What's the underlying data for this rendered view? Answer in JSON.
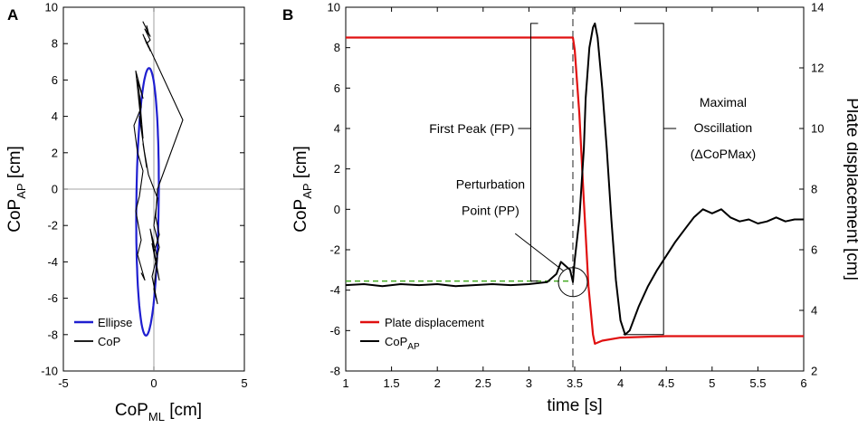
{
  "chart_data": [
    {
      "panel": "A",
      "type": "line",
      "xlabel": "CoP",
      "xlabel_sub": "ML",
      "xlabel_unit": "[cm]",
      "ylabel": "CoP",
      "ylabel_sub": "AP",
      "ylabel_unit": "[cm]",
      "xlim": [
        -5,
        5
      ],
      "ylim": [
        -10,
        10
      ],
      "xticks": [
        -5,
        0,
        5
      ],
      "yticks": [
        -10,
        -8,
        -6,
        -4,
        -2,
        0,
        2,
        4,
        6,
        8,
        10
      ],
      "grid": false,
      "zero_lines": true,
      "legend_position": "bottom-left",
      "series": [
        {
          "name": "Ellipse",
          "color": "#1f1fd0",
          "kind": "ellipse",
          "center": [
            -0.35,
            -0.7
          ],
          "semi_major": 7.35,
          "semi_minor": 0.62,
          "tilt_deg": 5.5
        },
        {
          "name": "CoP",
          "color": "#000000",
          "kind": "trace",
          "x": [
            -0.4,
            -0.3,
            -0.6,
            -0.2,
            -0.5,
            -0.2,
            -0.4,
            -0.6,
            -0.3,
            -0.5,
            -0.2,
            -0.4,
            1.6,
            0.2,
            0.1,
            0.3,
            0.0,
            0.2,
            -0.1,
            0.1,
            0.3,
            -0.2,
            0.2,
            0.0,
            0.2,
            -0.1,
            0.3,
            0.0,
            0.2,
            -0.3,
            -0.6,
            -0.4,
            -0.8,
            -0.6,
            -0.8,
            -0.7,
            -1.0,
            -0.6,
            -0.9,
            -0.7,
            -1.1,
            -0.9,
            -0.6,
            -0.8,
            -1.0,
            -0.7,
            -0.9,
            -0.5,
            -0.7
          ],
          "y": [
            9.0,
            8.6,
            9.2,
            8.4,
            8.8,
            8.2,
            8.0,
            8.5,
            7.8,
            8.3,
            7.6,
            8.1,
            3.8,
            0.0,
            -1.5,
            -2.5,
            -3.5,
            -4.5,
            -3.0,
            -4.0,
            -5.0,
            -2.2,
            -3.8,
            -5.5,
            -6.3,
            -4.8,
            -3.2,
            -2.0,
            -0.5,
            0.8,
            2.5,
            1.2,
            4.0,
            2.8,
            5.2,
            3.6,
            6.5,
            5.0,
            6.0,
            4.5,
            3.5,
            2.0,
            1.0,
            -0.4,
            -1.2,
            -2.8,
            -3.6,
            -5.0,
            -4.6
          ]
        }
      ]
    },
    {
      "panel": "B",
      "type": "line",
      "xlabel": "time [s]",
      "ylabel": "CoP",
      "ylabel_sub": "AP",
      "ylabel_unit": "[cm]",
      "y2label": "Plate displacement [cm]",
      "xlim": [
        1,
        6
      ],
      "ylim": [
        -8,
        10
      ],
      "y2lim": [
        2,
        14
      ],
      "xticks": [
        1,
        1.5,
        2,
        2.5,
        3,
        3.5,
        4,
        4.5,
        5,
        5.5,
        6
      ],
      "yticks": [
        -8,
        -6,
        -4,
        -2,
        0,
        2,
        4,
        6,
        8,
        10
      ],
      "y2ticks": [
        2,
        4,
        6,
        8,
        10,
        12,
        14
      ],
      "grid": false,
      "legend_position": "bottom-left",
      "baseline_dashed": {
        "y": -3.55,
        "x_end": 3.45,
        "color": "#44aa22"
      },
      "perturbation_time": 3.48,
      "series": [
        {
          "name": "Plate displacement",
          "color": "#e01010",
          "axis": "right",
          "x": [
            1.0,
            3.48,
            3.5,
            3.55,
            3.6,
            3.65,
            3.7,
            3.72,
            3.8,
            4.0,
            4.5,
            6.0
          ],
          "y": [
            13.0,
            13.0,
            12.6,
            10.5,
            7.6,
            4.8,
            3.2,
            2.9,
            3.0,
            3.1,
            3.15,
            3.15
          ]
        },
        {
          "name": "CoP",
          "name_sub": "AP",
          "color": "#000000",
          "axis": "left",
          "x": [
            1.0,
            1.2,
            1.4,
            1.6,
            1.8,
            2.0,
            2.2,
            2.4,
            2.6,
            2.8,
            3.0,
            3.2,
            3.3,
            3.35,
            3.4,
            3.45,
            3.48,
            3.5,
            3.55,
            3.6,
            3.62,
            3.66,
            3.7,
            3.72,
            3.75,
            3.8,
            3.85,
            3.9,
            3.95,
            4.0,
            4.05,
            4.1,
            4.2,
            4.3,
            4.4,
            4.5,
            4.6,
            4.7,
            4.8,
            4.9,
            5.0,
            5.1,
            5.2,
            5.3,
            5.4,
            5.5,
            5.6,
            5.7,
            5.8,
            5.9,
            6.0
          ],
          "y": [
            -3.75,
            -3.7,
            -3.8,
            -3.7,
            -3.75,
            -3.7,
            -3.8,
            -3.75,
            -3.7,
            -3.75,
            -3.7,
            -3.6,
            -3.2,
            -2.6,
            -2.8,
            -3.0,
            -3.6,
            -2.5,
            -0.5,
            3.0,
            5.5,
            8.0,
            9.0,
            9.2,
            8.5,
            6.0,
            3.0,
            -0.5,
            -3.5,
            -5.5,
            -6.2,
            -6.0,
            -4.8,
            -3.8,
            -3.0,
            -2.3,
            -1.6,
            -1.0,
            -0.4,
            0.0,
            -0.2,
            0.0,
            -0.4,
            -0.6,
            -0.5,
            -0.7,
            -0.6,
            -0.4,
            -0.6,
            -0.5,
            -0.5
          ]
        }
      ],
      "annotations": [
        {
          "text": "First Peak (FP)",
          "points_to_y": 4.0
        },
        {
          "lines": [
            "Maximal",
            "Oscillation",
            "(ΔCoPMax)"
          ]
        },
        {
          "lines": [
            "Perturbation",
            "Point (PP)"
          ]
        }
      ]
    }
  ]
}
